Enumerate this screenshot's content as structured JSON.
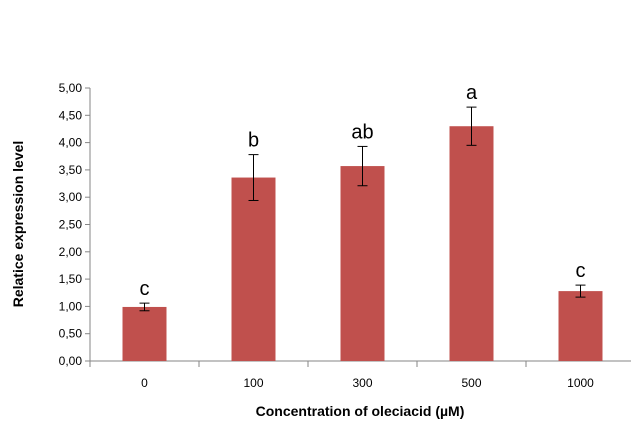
{
  "chart_data": {
    "type": "bar",
    "categories": [
      "0",
      "100",
      "300",
      "500",
      "1000"
    ],
    "values": [
      0.99,
      3.36,
      3.57,
      4.3,
      1.28
    ],
    "error": [
      0.07,
      0.42,
      0.36,
      0.35,
      0.11
    ],
    "significance_letters": [
      "c",
      "b",
      "ab",
      "a",
      "c"
    ],
    "xlabel": "Concentration of oleciacid (µM)",
    "ylabel": "Relatice expression level",
    "ylim": [
      0,
      5
    ],
    "yticks": [
      "0,00",
      "0,50",
      "1,00",
      "1,50",
      "2,00",
      "2,50",
      "3,00",
      "3,50",
      "4,00",
      "4,50",
      "5,00"
    ],
    "grid": false,
    "legend": "none",
    "colors": {
      "bar": "#c0504d",
      "axis": "#868686",
      "error_bar": "#000000"
    }
  }
}
